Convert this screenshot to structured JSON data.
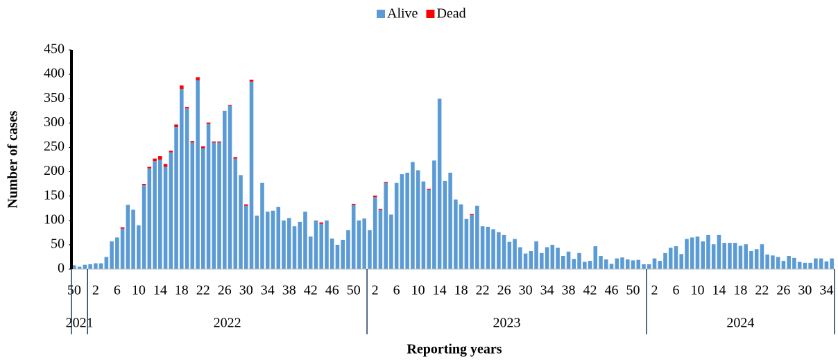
{
  "chart_data": {
    "type": "stacked-bar",
    "y_label": "Number of cases",
    "x_label": "Reporting years",
    "ylim": [
      0,
      450
    ],
    "yticks": [
      0,
      50,
      100,
      150,
      200,
      250,
      300,
      350,
      400,
      450
    ],
    "groups": [
      {
        "name": "2021",
        "size": 3
      },
      {
        "name": "2022",
        "size": 52
      },
      {
        "name": "2023",
        "size": 52
      },
      {
        "name": "2024",
        "size": 35
      }
    ],
    "categories": [
      "50",
      null,
      null,
      null,
      "2",
      null,
      null,
      null,
      "6",
      null,
      null,
      null,
      "10",
      null,
      null,
      null,
      "14",
      null,
      null,
      null,
      "18",
      null,
      null,
      null,
      "22",
      null,
      null,
      null,
      "26",
      null,
      null,
      null,
      "30",
      null,
      null,
      null,
      "34",
      null,
      null,
      null,
      "38",
      null,
      null,
      null,
      "42",
      null,
      null,
      null,
      "46",
      null,
      null,
      null,
      "50",
      null,
      null,
      null,
      "2",
      null,
      null,
      null,
      "6",
      null,
      null,
      null,
      "10",
      null,
      null,
      null,
      "14",
      null,
      null,
      null,
      "18",
      null,
      null,
      null,
      "22",
      null,
      null,
      null,
      "26",
      null,
      null,
      null,
      "30",
      null,
      null,
      null,
      "34",
      null,
      null,
      null,
      "38",
      null,
      null,
      null,
      "42",
      null,
      null,
      null,
      "46",
      null,
      null,
      null,
      "50",
      null,
      null,
      null,
      "2",
      null,
      null,
      null,
      "6",
      null,
      null,
      null,
      "10",
      null,
      null,
      null,
      "14",
      null,
      null,
      null,
      "18",
      null,
      null,
      null,
      "22",
      null,
      null,
      null,
      "26",
      null,
      null,
      null,
      "30",
      null,
      null,
      null,
      "34",
      null
    ],
    "series": [
      {
        "name": "Alive",
        "color": "#5b9bd5",
        "values": [
          8,
          5,
          9,
          10,
          12,
          12,
          25,
          57,
          65,
          83,
          132,
          122,
          90,
          172,
          207,
          222,
          225,
          210,
          240,
          292,
          370,
          330,
          260,
          388,
          248,
          298,
          260,
          260,
          325,
          335,
          227,
          193,
          130,
          385,
          110,
          177,
          118,
          120,
          128,
          100,
          105,
          88,
          97,
          118,
          67,
          100,
          93,
          100,
          63,
          50,
          60,
          80,
          132,
          100,
          104,
          80,
          148,
          122,
          177,
          112,
          177,
          195,
          198,
          220,
          203,
          180,
          163,
          223,
          350,
          181,
          198,
          143,
          133,
          103,
          111,
          130,
          88,
          87,
          82,
          76,
          70,
          56,
          62,
          45,
          32,
          37,
          57,
          33,
          45,
          50,
          44,
          27,
          36,
          21,
          33,
          15,
          17,
          47,
          27,
          20,
          11,
          22,
          24,
          20,
          18,
          19,
          10,
          10,
          22,
          17,
          33,
          44,
          47,
          31,
          62,
          65,
          67,
          57,
          70,
          51,
          70,
          54,
          54,
          54,
          48,
          51,
          37,
          41,
          51,
          30,
          28,
          25,
          17,
          27,
          23,
          15,
          13,
          13,
          22,
          22,
          16,
          22
        ]
      },
      {
        "name": "Dead",
        "color": "#ff0000",
        "values": [
          0,
          0,
          0,
          0,
          0,
          0,
          0,
          0,
          0,
          3,
          0,
          0,
          0,
          3,
          3,
          5,
          7,
          6,
          3,
          5,
          7,
          3,
          3,
          6,
          4,
          3,
          2,
          2,
          0,
          2,
          3,
          0,
          3,
          4,
          0,
          0,
          0,
          0,
          0,
          0,
          0,
          0,
          0,
          0,
          0,
          0,
          3,
          0,
          0,
          0,
          0,
          0,
          2,
          0,
          0,
          0,
          3,
          2,
          2,
          0,
          0,
          0,
          0,
          0,
          0,
          0,
          2,
          0,
          0,
          0,
          0,
          0,
          0,
          0,
          2,
          0,
          0,
          0,
          0,
          0,
          0,
          0,
          0,
          0,
          0,
          0,
          0,
          0,
          0,
          0,
          0,
          0,
          0,
          0,
          0,
          0,
          0,
          0,
          0,
          0,
          0,
          0,
          0,
          0,
          0,
          0,
          0,
          0,
          0,
          0,
          0,
          0,
          0,
          0,
          0,
          0,
          0,
          0,
          0,
          0,
          0,
          0,
          0,
          0,
          0,
          0,
          0,
          0,
          0,
          0,
          0,
          0,
          0,
          0,
          0,
          0,
          0,
          0,
          0,
          0,
          0,
          0
        ]
      }
    ]
  }
}
